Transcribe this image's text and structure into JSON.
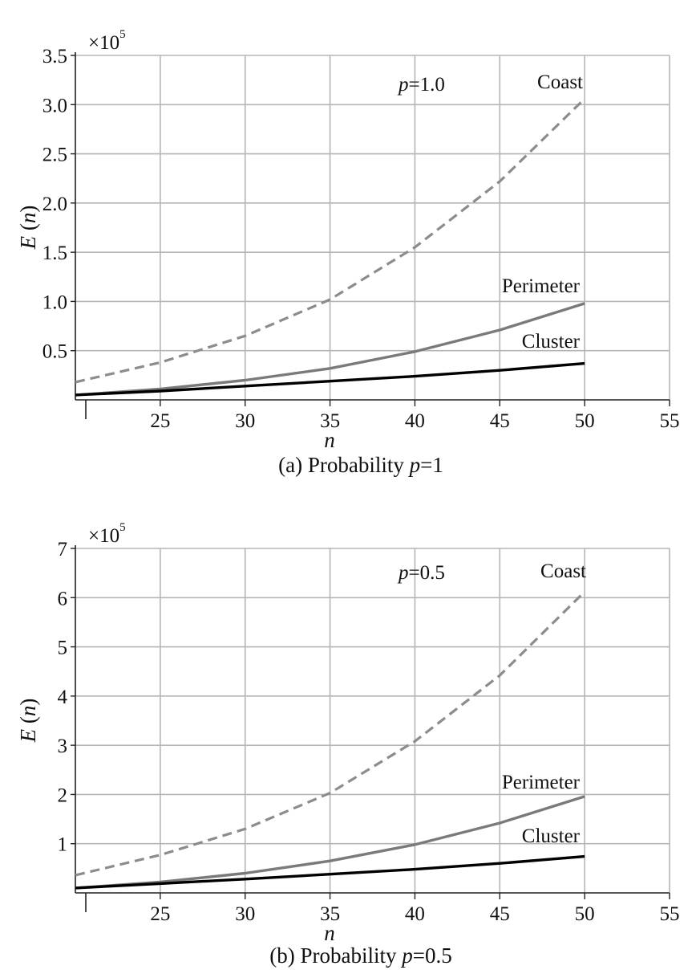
{
  "colors": {
    "coast": "#8c8c8c",
    "perimeter": "#7a7a7a",
    "cluster": "#000000",
    "grid": "#b5b5b5",
    "axis": "#222222"
  },
  "chart_data": [
    {
      "type": "line",
      "caption_prefix": "(a) Probability ",
      "caption_var": "p",
      "caption_suffix": "=1",
      "xlabel": "n",
      "ylabel_var": "E",
      "ylabel_arg": "n",
      "y_multiplier": "×10",
      "y_multiplier_exp": "5",
      "annotation_var": "p",
      "annotation_val": "=1.0",
      "xlim": [
        20,
        55
      ],
      "ylim": [
        0,
        3.5
      ],
      "xticks": [
        25,
        30,
        35,
        40,
        45,
        50,
        55
      ],
      "yticks": [
        0.5,
        1.0,
        1.5,
        2.0,
        2.5,
        3.0,
        3.5
      ],
      "ytick_labels": [
        "0.5",
        "1.0",
        "1.5",
        "2.0",
        "2.5",
        "3.0",
        "3.5"
      ],
      "grid": true,
      "series": [
        {
          "name": "Coast",
          "style": "dashed",
          "x": [
            20,
            25,
            30,
            35,
            40,
            45,
            50
          ],
          "y": [
            0.18,
            0.38,
            0.65,
            1.02,
            1.55,
            2.22,
            3.06
          ]
        },
        {
          "name": "Perimeter",
          "style": "solid",
          "x": [
            20,
            25,
            30,
            35,
            40,
            45,
            50
          ],
          "y": [
            0.05,
            0.11,
            0.2,
            0.32,
            0.49,
            0.71,
            0.98
          ]
        },
        {
          "name": "Cluster",
          "style": "solid",
          "x": [
            20,
            25,
            30,
            35,
            40,
            45,
            50
          ],
          "y": [
            0.05,
            0.09,
            0.14,
            0.19,
            0.24,
            0.3,
            0.37
          ]
        }
      ]
    },
    {
      "type": "line",
      "caption_prefix": "(b) Probability ",
      "caption_var": "p",
      "caption_suffix": "=0.5",
      "xlabel": "n",
      "ylabel_var": "E",
      "ylabel_arg": "n",
      "y_multiplier": "×10",
      "y_multiplier_exp": "5",
      "annotation_var": "p",
      "annotation_val": "=0.5",
      "xlim": [
        20,
        55
      ],
      "ylim": [
        0,
        7
      ],
      "xticks": [
        25,
        30,
        35,
        40,
        45,
        50,
        55
      ],
      "yticks": [
        1,
        2,
        3,
        4,
        5,
        6,
        7
      ],
      "ytick_labels": [
        "1",
        "2",
        "3",
        "4",
        "5",
        "6",
        "7"
      ],
      "grid": true,
      "series": [
        {
          "name": "Coast",
          "style": "dashed",
          "x": [
            20,
            25,
            30,
            35,
            40,
            45,
            50
          ],
          "y": [
            0.36,
            0.77,
            1.3,
            2.03,
            3.08,
            4.42,
            6.12
          ]
        },
        {
          "name": "Perimeter",
          "style": "solid",
          "x": [
            20,
            25,
            30,
            35,
            40,
            45,
            50
          ],
          "y": [
            0.1,
            0.22,
            0.4,
            0.65,
            0.98,
            1.42,
            1.96
          ]
        },
        {
          "name": "Cluster",
          "style": "solid",
          "x": [
            20,
            25,
            30,
            35,
            40,
            45,
            50
          ],
          "y": [
            0.1,
            0.19,
            0.28,
            0.38,
            0.48,
            0.6,
            0.74
          ]
        }
      ]
    }
  ]
}
